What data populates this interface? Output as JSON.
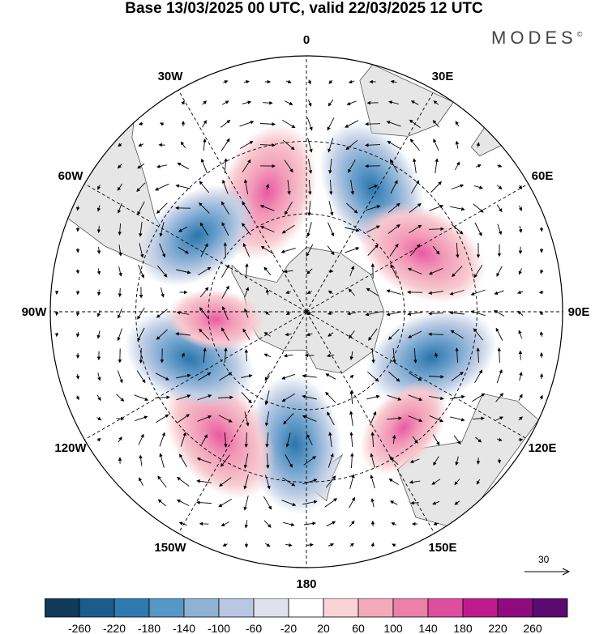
{
  "header": {
    "title": "Base 13/03/2025 00 UTC, valid 22/03/2025 12 UTC",
    "brand": "MODES",
    "brand_mark": "©"
  },
  "map": {
    "projection": "south-polar-stereographic",
    "longitude_labels": [
      "0",
      "30E",
      "60E",
      "90E",
      "120E",
      "150E",
      "180",
      "150W",
      "120W",
      "90W",
      "60W",
      "30W"
    ],
    "reference_vector": {
      "label": "30"
    },
    "anomaly_centers": [
      {
        "sign": "positive",
        "lon": -18,
        "lat": -52,
        "level": 220
      },
      {
        "sign": "negative",
        "lon": 28,
        "lat": -48,
        "level": -220
      },
      {
        "sign": "positive",
        "lon": 63,
        "lat": -51,
        "level": 200
      },
      {
        "sign": "negative",
        "lon": 110,
        "lat": -50,
        "level": -200
      },
      {
        "sign": "positive",
        "lon": 140,
        "lat": -45,
        "level": 100
      },
      {
        "sign": "negative",
        "lon": -175,
        "lat": -50,
        "level": -220
      },
      {
        "sign": "positive",
        "lon": -145,
        "lat": -45,
        "level": 220
      },
      {
        "sign": "negative",
        "lon": -112,
        "lat": -52,
        "level": -200
      },
      {
        "sign": "positive",
        "lon": -95,
        "lat": -62,
        "level": 60
      },
      {
        "sign": "negative",
        "lon": -55,
        "lat": -50,
        "level": -180
      }
    ]
  },
  "colorbar": {
    "tick_labels": [
      "-260",
      "-220",
      "-180",
      "-140",
      "-100",
      "-60",
      "-20",
      "20",
      "60",
      "100",
      "140",
      "180",
      "220",
      "260"
    ],
    "colors": [
      "#0f3a5a",
      "#1b5c8c",
      "#2d7bb0",
      "#5597c6",
      "#8fb2d4",
      "#b8c8e2",
      "#e1e1ee",
      "#ffffff",
      "#f9d3d6",
      "#f3aab9",
      "#ec80a8",
      "#de4e9e",
      "#c01b8c",
      "#900b80",
      "#5a0a70"
    ]
  }
}
